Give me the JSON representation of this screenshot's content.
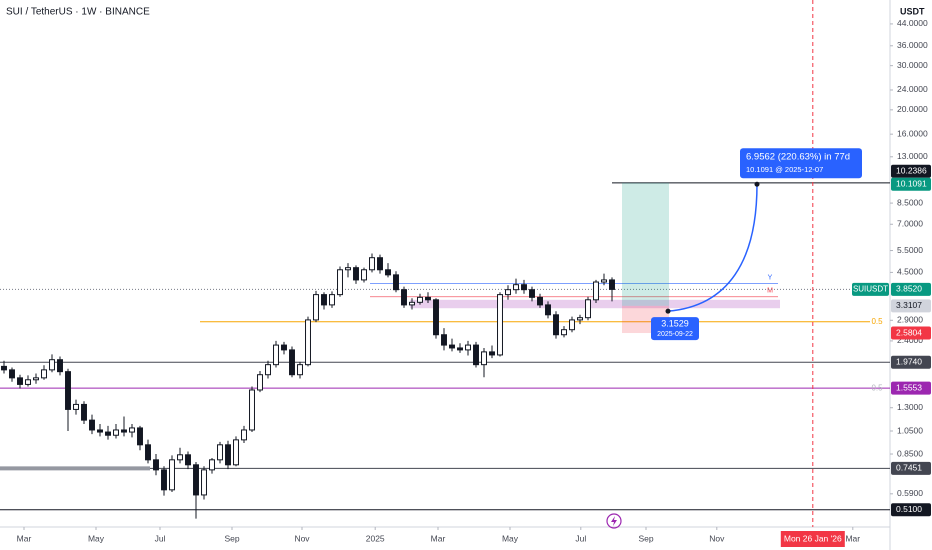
{
  "chart_data": {
    "type": "candlestick",
    "title": "SUI / TetherUS · 1W · BINANCE",
    "y_unit": "USDT",
    "log_scale": true,
    "ylim": [
      0.464,
      54.8
    ],
    "yticks": [
      {
        "value": 44,
        "label": "44.0000"
      },
      {
        "value": 36,
        "label": "36.0000"
      },
      {
        "value": 30,
        "label": "30.0000"
      },
      {
        "value": 24,
        "label": "24.0000"
      },
      {
        "value": 20,
        "label": "20.0000"
      },
      {
        "value": 16,
        "label": "16.0000"
      },
      {
        "value": 13,
        "label": "13.0000"
      },
      {
        "value": 8.5,
        "label": "8.5000"
      },
      {
        "value": 7,
        "label": "7.0000"
      },
      {
        "value": 5.5,
        "label": "5.5000"
      },
      {
        "value": 4.5,
        "label": "4.5000"
      },
      {
        "value": 2.9,
        "label": "2.9000"
      },
      {
        "value": 2.4,
        "label": "2.4000"
      },
      {
        "value": 1.3,
        "label": "1.3000"
      },
      {
        "value": 1.05,
        "label": "1.0500"
      },
      {
        "value": 0.85,
        "label": "0.8500"
      },
      {
        "value": 0.59,
        "label": "0.5900"
      }
    ],
    "xlim": [
      -0.5,
      110.75
    ],
    "xticks": [
      {
        "value": 2.5,
        "label": "Mar"
      },
      {
        "value": 11.5,
        "label": "May"
      },
      {
        "value": 19.5,
        "label": "Jul"
      },
      {
        "value": 28.5,
        "label": "Sep"
      },
      {
        "value": 37.25,
        "label": "Nov"
      },
      {
        "value": 46.4,
        "label": "2025"
      },
      {
        "value": 54.25,
        "label": "Mar"
      },
      {
        "value": 63.25,
        "label": "May"
      },
      {
        "value": 72.1,
        "label": "Jul"
      },
      {
        "value": 80.25,
        "label": "Sep"
      },
      {
        "value": 89.1,
        "label": "Nov"
      },
      {
        "value": 106.1,
        "label": "Mar"
      }
    ],
    "cursor": {
      "value": 101.1,
      "label": "Mon 26 Jan '26",
      "color": "#f23645"
    },
    "up_color": "#ffffff",
    "down_color": "#131722",
    "candles": [
      [
        1.9,
        2.0,
        1.78,
        1.84
      ],
      [
        1.84,
        1.88,
        1.65,
        1.71
      ],
      [
        1.71,
        1.76,
        1.55,
        1.61
      ],
      [
        1.61,
        1.75,
        1.58,
        1.68
      ],
      [
        1.68,
        1.78,
        1.62,
        1.71
      ],
      [
        1.71,
        1.92,
        1.68,
        1.84
      ],
      [
        1.84,
        2.12,
        1.8,
        2.02
      ],
      [
        2.02,
        2.08,
        1.75,
        1.81
      ],
      [
        1.81,
        1.86,
        1.05,
        1.28
      ],
      [
        1.28,
        1.4,
        1.22,
        1.34
      ],
      [
        1.34,
        1.38,
        1.12,
        1.16
      ],
      [
        1.16,
        1.22,
        1.02,
        1.06
      ],
      [
        1.06,
        1.12,
        1.0,
        1.04
      ],
      [
        1.04,
        1.1,
        0.97,
        1.01
      ],
      [
        1.01,
        1.12,
        0.98,
        1.06
      ],
      [
        1.06,
        1.2,
        1.0,
        1.04
      ],
      [
        1.04,
        1.12,
        0.99,
        1.08
      ],
      [
        1.08,
        1.1,
        0.88,
        0.925
      ],
      [
        0.925,
        0.97,
        0.78,
        0.806
      ],
      [
        0.806,
        0.85,
        0.7,
        0.735
      ],
      [
        0.735,
        0.76,
        0.58,
        0.612
      ],
      [
        0.612,
        0.84,
        0.6,
        0.806
      ],
      [
        0.806,
        0.9,
        0.78,
        0.844
      ],
      [
        0.844,
        0.87,
        0.74,
        0.77
      ],
      [
        0.77,
        0.79,
        0.47,
        0.584
      ],
      [
        0.584,
        0.76,
        0.56,
        0.735
      ],
      [
        0.735,
        0.82,
        0.71,
        0.806
      ],
      [
        0.806,
        0.95,
        0.78,
        0.925
      ],
      [
        0.925,
        0.96,
        0.74,
        0.77
      ],
      [
        0.77,
        1.0,
        0.76,
        0.968
      ],
      [
        0.968,
        1.1,
        0.94,
        1.06
      ],
      [
        1.06,
        1.58,
        1.04,
        1.53
      ],
      [
        1.53,
        1.82,
        1.5,
        1.76
      ],
      [
        1.76,
        2.0,
        1.7,
        1.93
      ],
      [
        1.93,
        2.4,
        1.88,
        2.31
      ],
      [
        2.31,
        2.38,
        2.12,
        2.21
      ],
      [
        2.21,
        2.28,
        1.72,
        1.76
      ],
      [
        1.76,
        1.98,
        1.7,
        1.93
      ],
      [
        1.93,
        3.0,
        1.9,
        2.91
      ],
      [
        2.91,
        3.8,
        2.85,
        3.67
      ],
      [
        3.67,
        3.75,
        3.2,
        3.34
      ],
      [
        3.34,
        3.78,
        3.25,
        3.67
      ],
      [
        3.67,
        4.75,
        3.6,
        4.61
      ],
      [
        4.61,
        4.9,
        4.3,
        4.7
      ],
      [
        4.7,
        4.8,
        4.05,
        4.2
      ],
      [
        4.2,
        4.7,
        4.1,
        4.61
      ],
      [
        4.61,
        5.35,
        4.5,
        5.15
      ],
      [
        5.15,
        5.3,
        4.45,
        4.61
      ],
      [
        4.61,
        4.9,
        4.3,
        4.4
      ],
      [
        4.4,
        4.55,
        3.75,
        3.84
      ],
      [
        3.84,
        3.95,
        3.25,
        3.34
      ],
      [
        3.34,
        3.55,
        3.2,
        3.42
      ],
      [
        3.42,
        3.7,
        3.35,
        3.58
      ],
      [
        3.58,
        3.75,
        3.4,
        3.5
      ],
      [
        3.5,
        3.55,
        2.45,
        2.54
      ],
      [
        2.54,
        2.7,
        2.2,
        2.31
      ],
      [
        2.31,
        2.45,
        2.18,
        2.25
      ],
      [
        2.25,
        2.35,
        2.15,
        2.21
      ],
      [
        2.21,
        2.4,
        2.1,
        2.31
      ],
      [
        2.31,
        2.38,
        1.88,
        1.93
      ],
      [
        1.93,
        2.25,
        1.72,
        2.17
      ],
      [
        2.17,
        2.3,
        2.05,
        2.11
      ],
      [
        2.11,
        3.75,
        2.08,
        3.67
      ],
      [
        3.67,
        4.0,
        3.5,
        3.84
      ],
      [
        3.84,
        4.25,
        3.7,
        4.02
      ],
      [
        4.02,
        4.2,
        3.7,
        3.84
      ],
      [
        3.84,
        3.95,
        3.45,
        3.58
      ],
      [
        3.58,
        3.7,
        3.25,
        3.34
      ],
      [
        3.34,
        3.45,
        2.95,
        3.05
      ],
      [
        3.05,
        3.15,
        2.45,
        2.54
      ],
      [
        2.54,
        2.75,
        2.48,
        2.66
      ],
      [
        2.66,
        3.0,
        2.6,
        2.91
      ],
      [
        2.91,
        3.05,
        2.8,
        2.97
      ],
      [
        2.97,
        3.6,
        2.9,
        3.5
      ],
      [
        3.5,
        4.2,
        3.4,
        4.12
      ],
      [
        4.12,
        4.45,
        4.0,
        4.2
      ],
      [
        4.2,
        4.3,
        3.45,
        3.85
      ]
    ],
    "price_levels": [
      {
        "value": 10.2386,
        "label": "10.2386",
        "color": "#131722",
        "text_color": "#ffffff",
        "line": "partial"
      },
      {
        "value": 10.1091,
        "label": "10.1091",
        "color": "#089981",
        "text_color": "#ffffff",
        "line": "none"
      },
      {
        "value": 3.852,
        "label": "3.8520",
        "name": "SUIUSDT",
        "color": "#089981",
        "text_color": "#ffffff",
        "line": "dotted"
      },
      {
        "value": 3.3107,
        "label": "3.3107",
        "color": "#d1d4dc",
        "text_color": "#131722",
        "line": "none"
      },
      {
        "value": 2.5804,
        "label": "2.5804",
        "color": "#f23645",
        "text_color": "#ffffff",
        "line": "none"
      },
      {
        "value": 1.974,
        "label": "1.9740",
        "color": "#434651",
        "text_color": "#ffffff",
        "line": "solid"
      },
      {
        "value": 1.5553,
        "label": "1.5553",
        "color": "#9c27b0",
        "text_color": "#ffffff",
        "line": "solid"
      },
      {
        "value": 0.7451,
        "label": "0.7451",
        "color": "#434651",
        "text_color": "#ffffff",
        "line": "solid"
      },
      {
        "value": 0.51,
        "label": "0.5100",
        "color": "#131722",
        "text_color": "#ffffff",
        "line": "solid"
      }
    ],
    "fib_levels": [
      {
        "value": 2.86,
        "label": "0.5",
        "color": "#f7a600"
      },
      {
        "value": 1.5553,
        "label": "0.5",
        "color": "#b2b5be"
      }
    ],
    "zone": {
      "low": 3.24,
      "high": 3.5,
      "color": "#e1bee7"
    },
    "ray_lines": [
      {
        "value": 4.06,
        "label": "Y",
        "color": "#2962ff"
      },
      {
        "value": 3.6,
        "label": "M",
        "color": "#f23645"
      }
    ],
    "position": {
      "entry": 3.3107,
      "target": 10.2386,
      "stop": 2.5804
    },
    "projection": {
      "start_value": 3.1529,
      "end_value": 10.1091,
      "color": "#2962ff",
      "start_label": "3.1529",
      "start_sub": "2025-09-22",
      "target_label": "6.9562 (220.63%) in 77d",
      "target_sub": "10.1091 @ 2025-12-07"
    }
  }
}
